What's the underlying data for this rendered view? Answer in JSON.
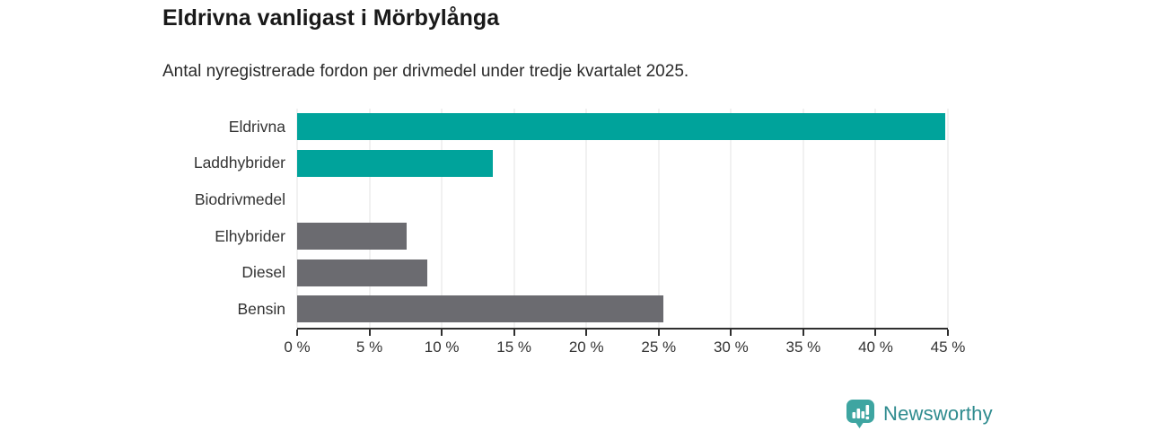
{
  "header": {
    "title": "Eldrivna vanligast i Mörbylånga",
    "subtitle": "Antal nyregistrerade fordon per drivmedel under tredje kvartalet 2025."
  },
  "chart_data": {
    "type": "bar",
    "orientation": "horizontal",
    "title": "Eldrivna vanligast i Mörbylånga",
    "subtitle": "Antal nyregistrerade fordon per drivmedel under tredje kvartalet 2025.",
    "categories": [
      "Eldrivna",
      "Laddhybrider",
      "Biodrivmedel",
      "Elhybrider",
      "Diesel",
      "Bensin"
    ],
    "values": [
      44.8,
      13.5,
      0,
      7.6,
      9.0,
      25.3
    ],
    "unit": "%",
    "bar_colors": [
      "#00A39B",
      "#00A39B",
      "#00A39B",
      "#6B6B70",
      "#6B6B70",
      "#6B6B70"
    ],
    "xlim": [
      0,
      45
    ],
    "x_ticks": [
      0,
      5,
      10,
      15,
      20,
      25,
      30,
      35,
      40,
      45
    ],
    "x_tick_labels": [
      "0 %",
      "5 %",
      "10 %",
      "15 %",
      "20 %",
      "25 %",
      "30 %",
      "35 %",
      "40 %",
      "45 %"
    ],
    "grid": true,
    "legend": false,
    "xlabel": "",
    "ylabel": ""
  },
  "footer": {
    "brand": "Newsworthy"
  },
  "colors": {
    "accent_teal": "#00A39B",
    "bar_gray": "#6B6B70",
    "axis": "#2F2F2F",
    "gridline": "#E3E3E3",
    "logo_icon_teal": "#3EA5A1",
    "logo_text_teal": "#2E8B8E"
  }
}
